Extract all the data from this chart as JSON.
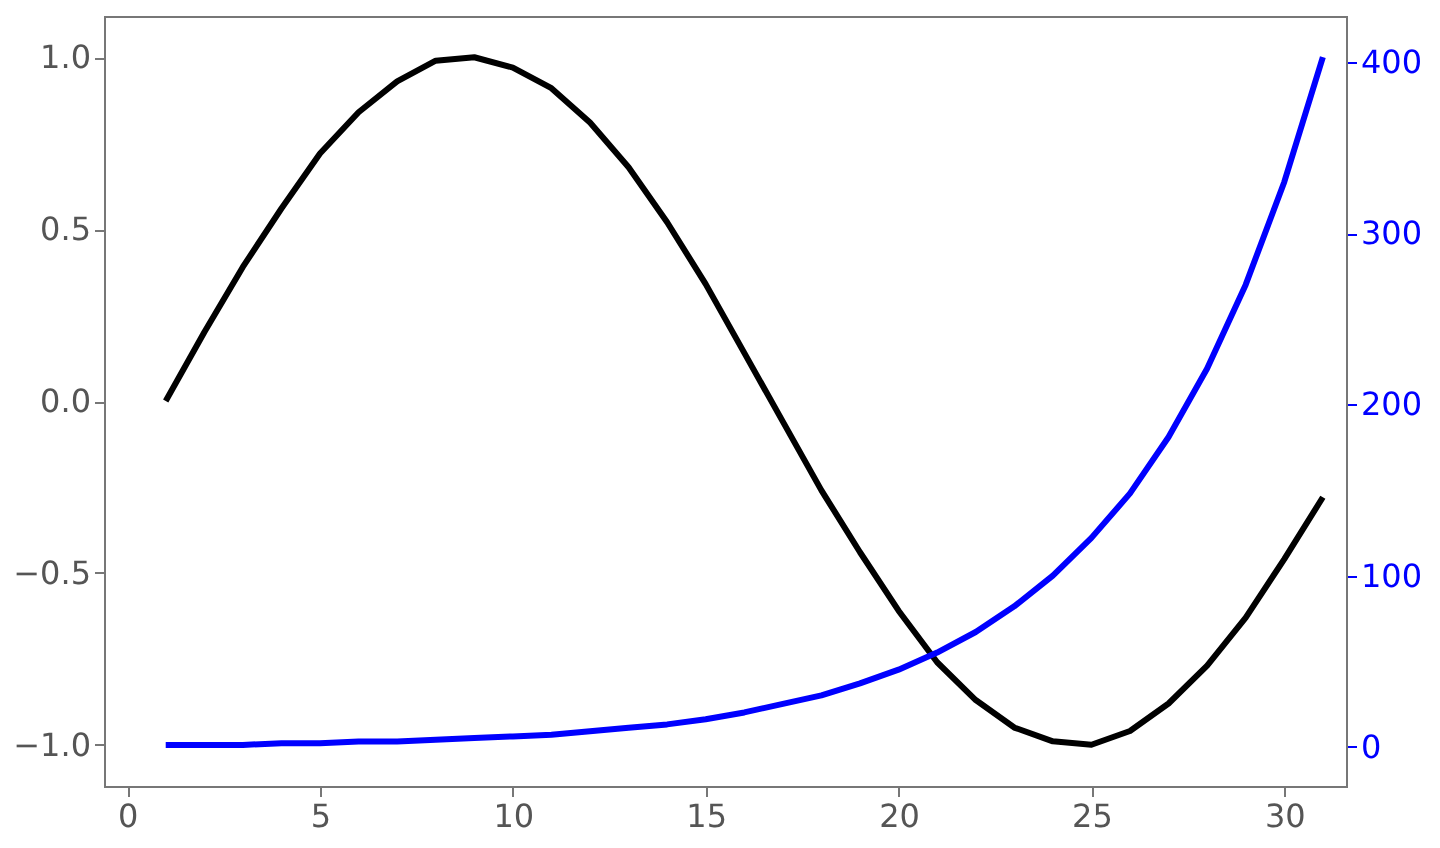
{
  "chart_data": {
    "type": "line",
    "x": [
      1,
      2,
      3,
      4,
      5,
      6,
      7,
      8,
      9,
      10,
      11,
      12,
      13,
      14,
      15,
      16,
      17,
      18,
      19,
      20,
      21,
      22,
      23,
      24,
      25,
      26,
      27,
      28,
      29,
      30,
      31
    ],
    "series": [
      {
        "color": "#000000",
        "values": [
          0,
          0.2,
          0.39,
          0.56,
          0.72,
          0.84,
          0.93,
          0.99,
          1.0,
          0.97,
          0.91,
          0.81,
          0.68,
          0.52,
          0.34,
          0.14,
          -0.06,
          -0.26,
          -0.44,
          -0.61,
          -0.76,
          -0.87,
          -0.95,
          -0.99,
          -1.0,
          -0.96,
          -0.88,
          -0.77,
          -0.63,
          -0.46,
          -0.28
        ]
      },
      {
        "color": "#0000ff",
        "axis": "y2",
        "values": [
          1,
          1,
          1,
          2,
          2,
          3,
          3,
          4,
          5,
          6,
          7,
          9,
          11,
          13,
          16,
          20,
          25,
          30,
          37,
          45,
          55,
          67,
          82,
          100,
          122,
          148,
          181,
          221,
          270,
          330,
          403
        ]
      }
    ],
    "xlim": [
      -0.6,
      31.6
    ],
    "xticks": [
      0,
      5,
      10,
      15,
      20,
      25,
      30
    ],
    "ylim": [
      -1.12,
      1.12
    ],
    "yticks": [
      {
        "value": -1,
        "label": "−1.0"
      },
      {
        "value": -0.5,
        "label": "−0.5"
      },
      {
        "value": 0,
        "label": "0.0"
      },
      {
        "value": 0.5,
        "label": "0.5"
      },
      {
        "value": 1,
        "label": "1.0"
      }
    ],
    "y2lim": [
      -23,
      427
    ],
    "y2ticks": [
      0,
      100,
      200,
      300,
      400
    ],
    "grid": false,
    "line_style": "solid",
    "marker": "none"
  }
}
